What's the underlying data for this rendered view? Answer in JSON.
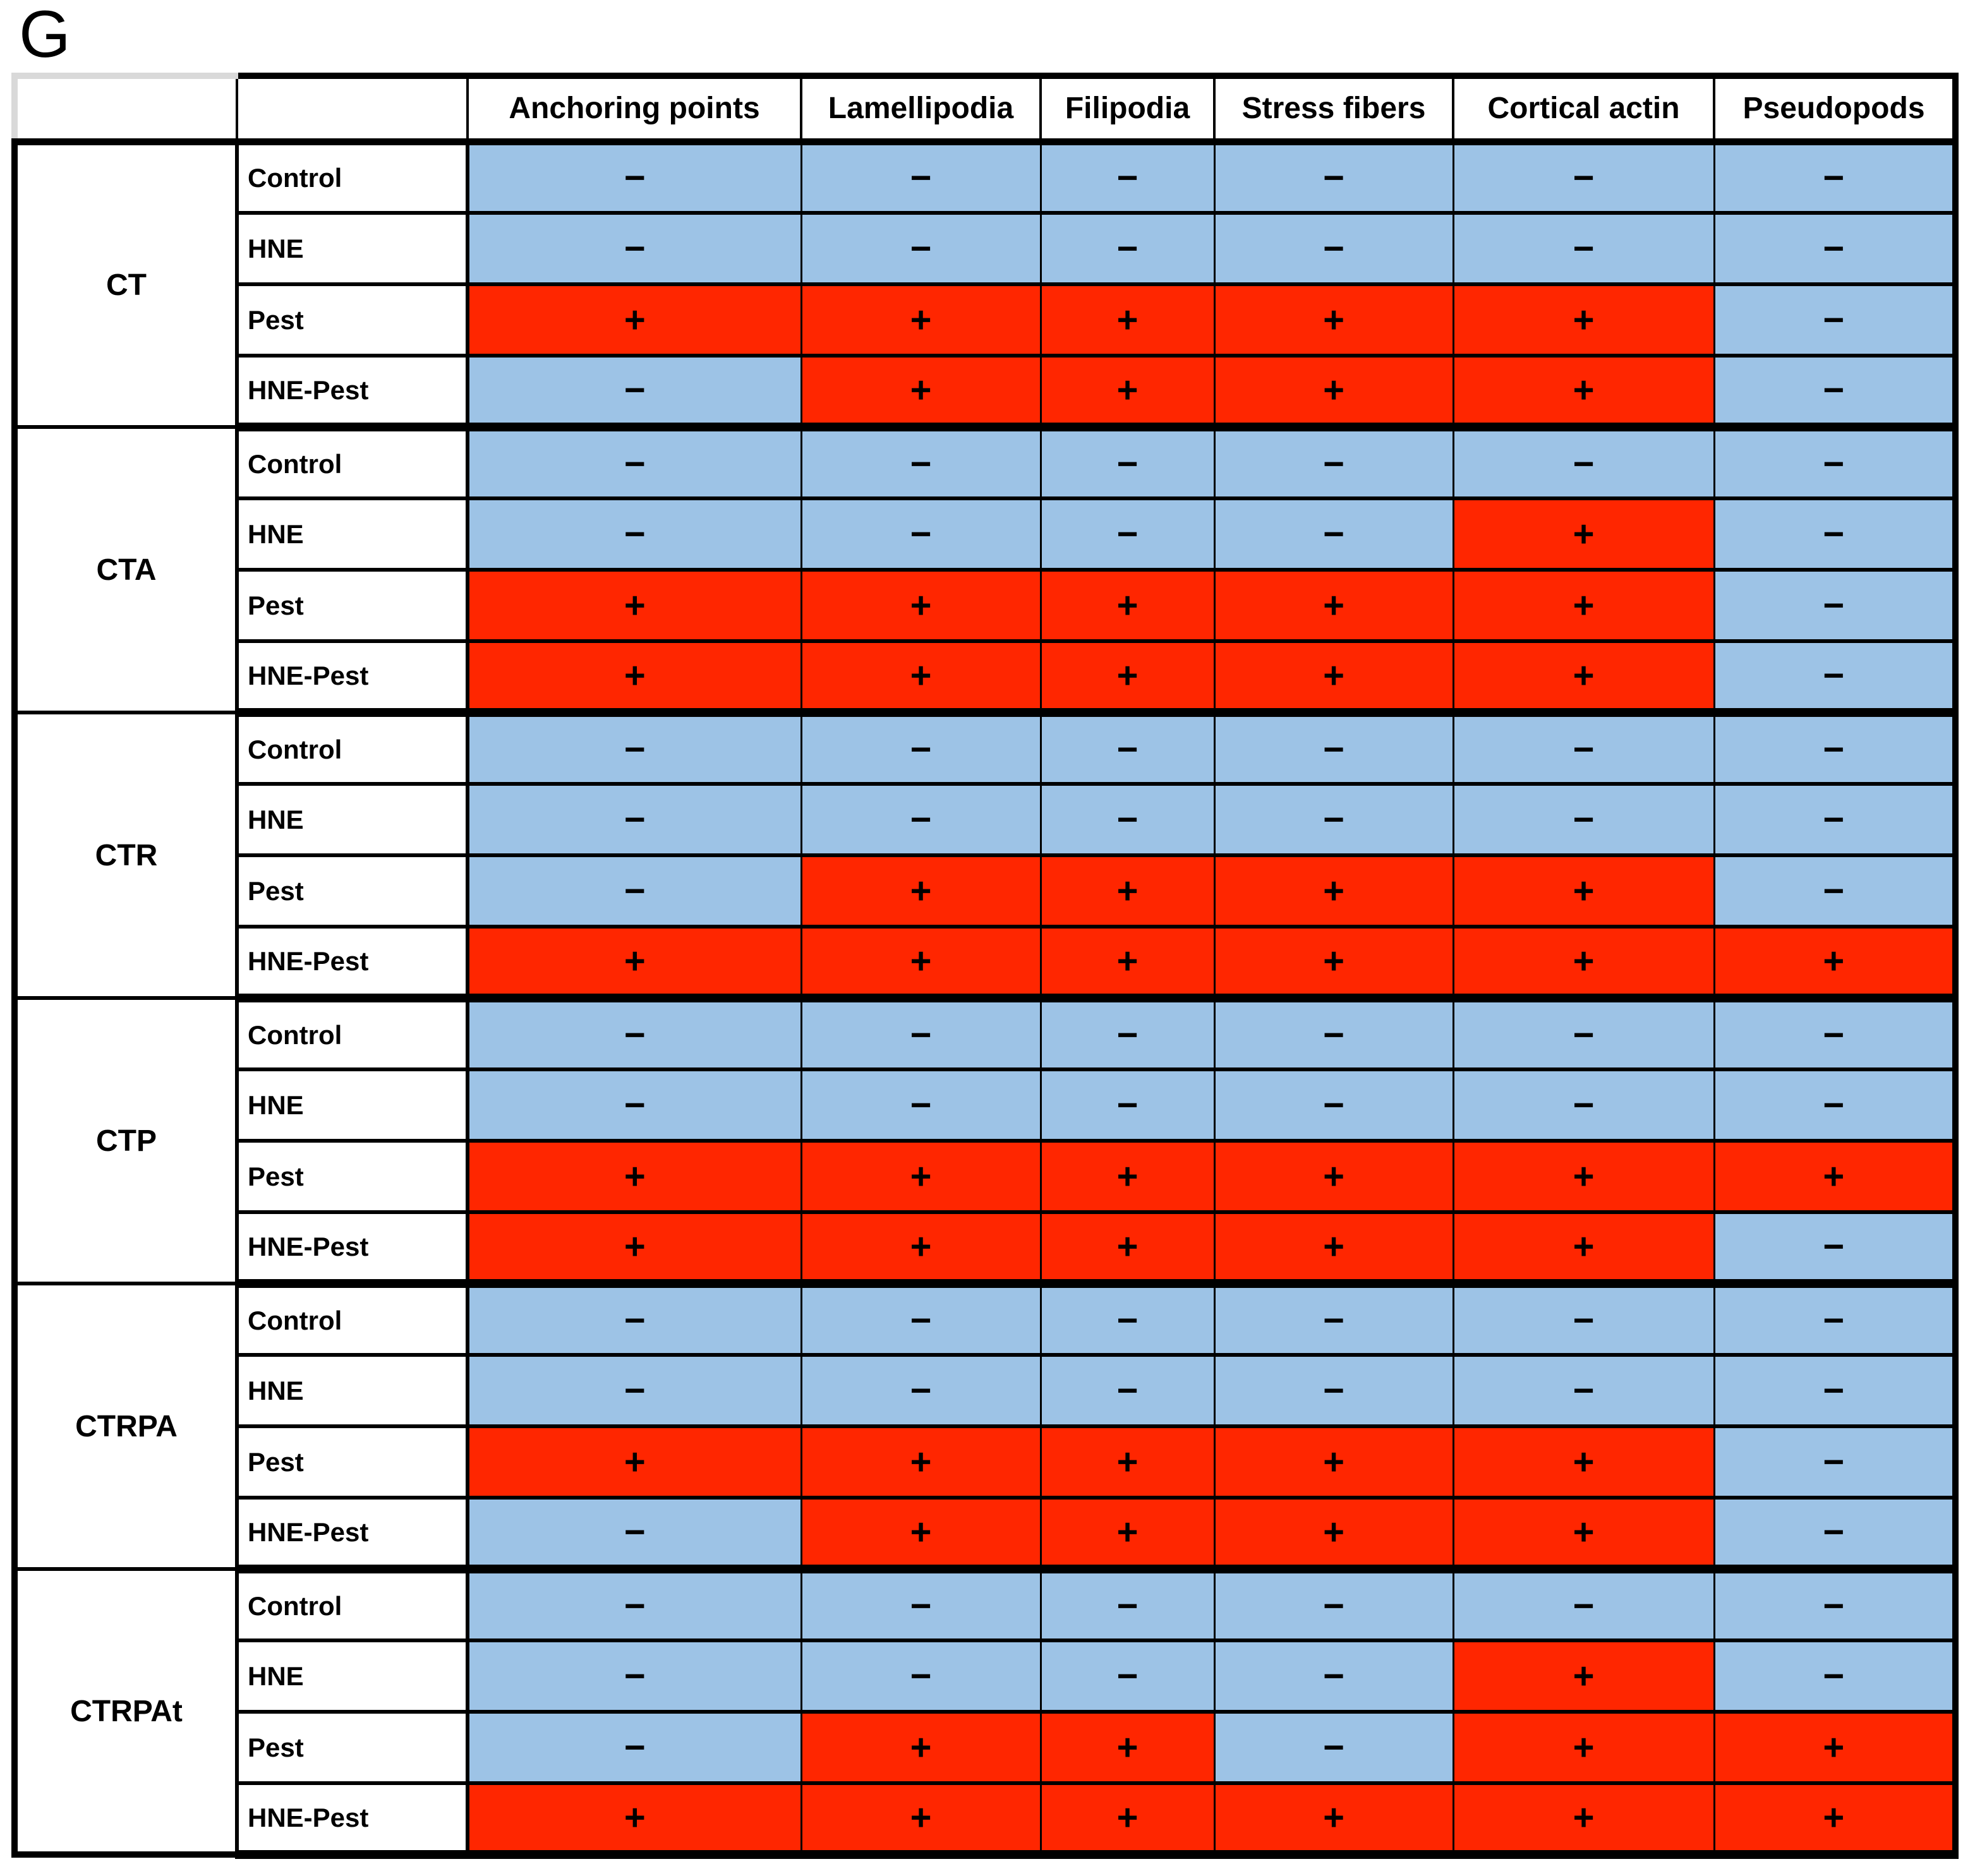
{
  "panel_label": "G",
  "style": {
    "positive_color": "#FF2600",
    "negative_color": "#9DC3E6",
    "border_color": "#000000",
    "background_color": "#FFFFFF"
  },
  "symbols": {
    "positive": "+",
    "negative": "−"
  },
  "chart_data": {
    "type": "table",
    "columns": [
      "Anchoring points",
      "Lamellipodia",
      "Filipodia",
      "Stress fibers",
      "Cortical actin",
      "Pseudopods"
    ],
    "conditions": [
      "Control",
      "HNE",
      "Pest",
      "HNE-Pest"
    ],
    "cell_encoding": {
      "+": "present (red cell)",
      "−": "absent (blue cell)"
    },
    "groups": [
      {
        "name": "CT",
        "rows": [
          {
            "condition": "Control",
            "values": [
              "−",
              "−",
              "−",
              "−",
              "−",
              "−"
            ]
          },
          {
            "condition": "HNE",
            "values": [
              "−",
              "−",
              "−",
              "−",
              "−",
              "−"
            ]
          },
          {
            "condition": "Pest",
            "values": [
              "+",
              "+",
              "+",
              "+",
              "+",
              "−"
            ]
          },
          {
            "condition": "HNE-Pest",
            "values": [
              "−",
              "+",
              "+",
              "+",
              "+",
              "−"
            ]
          }
        ]
      },
      {
        "name": "CTA",
        "rows": [
          {
            "condition": "Control",
            "values": [
              "−",
              "−",
              "−",
              "−",
              "−",
              "−"
            ]
          },
          {
            "condition": "HNE",
            "values": [
              "−",
              "−",
              "−",
              "−",
              "+",
              "−"
            ]
          },
          {
            "condition": "Pest",
            "values": [
              "+",
              "+",
              "+",
              "+",
              "+",
              "−"
            ]
          },
          {
            "condition": "HNE-Pest",
            "values": [
              "+",
              "+",
              "+",
              "+",
              "+",
              "−"
            ]
          }
        ]
      },
      {
        "name": "CTR",
        "rows": [
          {
            "condition": "Control",
            "values": [
              "−",
              "−",
              "−",
              "−",
              "−",
              "−"
            ]
          },
          {
            "condition": "HNE",
            "values": [
              "−",
              "−",
              "−",
              "−",
              "−",
              "−"
            ]
          },
          {
            "condition": "Pest",
            "values": [
              "−",
              "+",
              "+",
              "+",
              "+",
              "−"
            ]
          },
          {
            "condition": "HNE-Pest",
            "values": [
              "+",
              "+",
              "+",
              "+",
              "+",
              "+"
            ]
          }
        ]
      },
      {
        "name": "CTP",
        "rows": [
          {
            "condition": "Control",
            "values": [
              "−",
              "−",
              "−",
              "−",
              "−",
              "−"
            ]
          },
          {
            "condition": "HNE",
            "values": [
              "−",
              "−",
              "−",
              "−",
              "−",
              "−"
            ]
          },
          {
            "condition": "Pest",
            "values": [
              "+",
              "+",
              "+",
              "+",
              "+",
              "+"
            ]
          },
          {
            "condition": "HNE-Pest",
            "values": [
              "+",
              "+",
              "+",
              "+",
              "+",
              "−"
            ]
          }
        ]
      },
      {
        "name": "CTRPA",
        "rows": [
          {
            "condition": "Control",
            "values": [
              "−",
              "−",
              "−",
              "−",
              "−",
              "−"
            ]
          },
          {
            "condition": "HNE",
            "values": [
              "−",
              "−",
              "−",
              "−",
              "−",
              "−"
            ]
          },
          {
            "condition": "Pest",
            "values": [
              "+",
              "+",
              "+",
              "+",
              "+",
              "−"
            ]
          },
          {
            "condition": "HNE-Pest",
            "values": [
              "−",
              "+",
              "+",
              "+",
              "+",
              "−"
            ]
          }
        ]
      },
      {
        "name": "CTRPAt",
        "rows": [
          {
            "condition": "Control",
            "values": [
              "−",
              "−",
              "−",
              "−",
              "−",
              "−"
            ]
          },
          {
            "condition": "HNE",
            "values": [
              "−",
              "−",
              "−",
              "−",
              "+",
              "−"
            ]
          },
          {
            "condition": "Pest",
            "values": [
              "−",
              "+",
              "+",
              "−",
              "+",
              "+"
            ]
          },
          {
            "condition": "HNE-Pest",
            "values": [
              "+",
              "+",
              "+",
              "+",
              "+",
              "+"
            ]
          }
        ]
      }
    ]
  }
}
